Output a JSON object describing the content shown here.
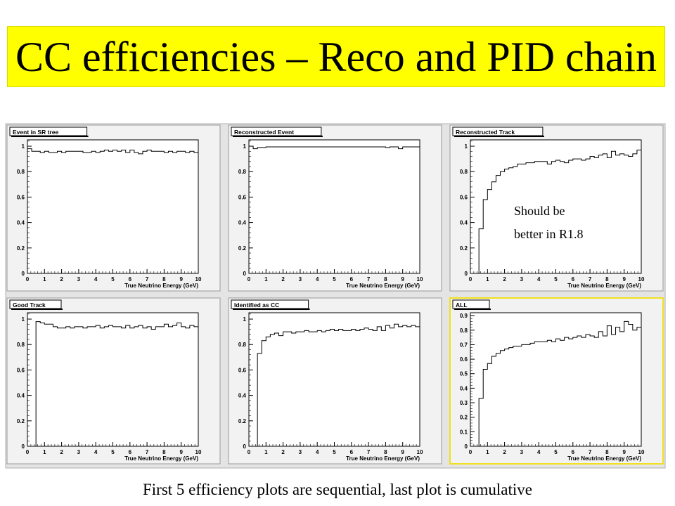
{
  "title": "CC efficiencies – Reco and PID chain",
  "caption": "First 5 efficiency plots are sequential, last plot is cumulative",
  "annotation": {
    "line1": "Should be",
    "line2": "better in R1.8"
  },
  "colors": {
    "title_bg": "#ffff00",
    "highlight_border": "#f0e020"
  },
  "chart_data": [
    {
      "type": "line",
      "title": "Event in SR tree",
      "xlabel": "True Neutrino Energy (GeV)",
      "xlim": [
        0,
        10
      ],
      "ylim": [
        0,
        1.05
      ],
      "xticks": [
        0,
        1,
        2,
        3,
        4,
        5,
        6,
        7,
        8,
        9,
        10
      ],
      "yticks": [
        0,
        0.2,
        0.4,
        0.6,
        0.8,
        1
      ],
      "ytick_labels": [
        "0",
        "0.2",
        "0.4",
        "0.6",
        "0.8",
        "1"
      ],
      "bin_width": 0.25,
      "values": [
        0.98,
        0.96,
        0.96,
        0.95,
        0.96,
        0.95,
        0.95,
        0.96,
        0.95,
        0.96,
        0.96,
        0.96,
        0.96,
        0.95,
        0.95,
        0.96,
        0.95,
        0.96,
        0.97,
        0.96,
        0.97,
        0.96,
        0.97,
        0.95,
        0.97,
        0.95,
        0.94,
        0.96,
        0.97,
        0.96,
        0.96,
        0.96,
        0.95,
        0.96,
        0.95,
        0.96,
        0.96,
        0.95,
        0.96,
        0.95
      ]
    },
    {
      "type": "line",
      "title": "Reconstructed Event",
      "xlabel": "True Neutrino Energy (GeV)",
      "xlim": [
        0,
        10
      ],
      "ylim": [
        0,
        1.05
      ],
      "xticks": [
        0,
        1,
        2,
        3,
        4,
        5,
        6,
        7,
        8,
        9,
        10
      ],
      "yticks": [
        0,
        0.2,
        0.4,
        0.6,
        0.8,
        1
      ],
      "ytick_labels": [
        "0",
        "0.2",
        "0.4",
        "0.6",
        "0.8",
        "1"
      ],
      "bin_width": 0.25,
      "values": [
        1.0,
        0.98,
        0.99,
        0.99,
        0.995,
        0.995,
        0.995,
        0.995,
        0.995,
        0.995,
        0.995,
        0.995,
        0.995,
        0.995,
        0.995,
        0.995,
        0.995,
        0.995,
        0.995,
        0.995,
        0.995,
        0.995,
        0.995,
        0.995,
        0.995,
        0.995,
        0.995,
        0.995,
        0.995,
        0.995,
        0.995,
        0.995,
        0.99,
        0.995,
        0.995,
        0.98,
        0.995,
        0.995,
        0.995,
        0.995
      ]
    },
    {
      "type": "line",
      "title": "Reconstructed Track",
      "xlabel": "True Neutrino Energy (GeV)",
      "xlim": [
        0,
        10
      ],
      "ylim": [
        0,
        1.05
      ],
      "xticks": [
        0,
        1,
        2,
        3,
        4,
        5,
        6,
        7,
        8,
        9,
        10
      ],
      "yticks": [
        0,
        0.2,
        0.4,
        0.6,
        0.8,
        1
      ],
      "ytick_labels": [
        "0",
        "0.2",
        "0.4",
        "0.6",
        "0.8",
        "1"
      ],
      "bin_width": 0.25,
      "values": [
        0,
        0,
        0.35,
        0.58,
        0.66,
        0.72,
        0.77,
        0.8,
        0.82,
        0.83,
        0.84,
        0.86,
        0.86,
        0.87,
        0.87,
        0.88,
        0.88,
        0.88,
        0.86,
        0.88,
        0.89,
        0.88,
        0.87,
        0.89,
        0.9,
        0.9,
        0.89,
        0.9,
        0.92,
        0.91,
        0.93,
        0.94,
        0.91,
        0.96,
        0.93,
        0.94,
        0.93,
        0.92,
        0.94,
        0.97
      ]
    },
    {
      "type": "line",
      "title": "Good Track",
      "xlabel": "True Neutrino Energy (GeV)",
      "xlim": [
        0,
        10
      ],
      "ylim": [
        0,
        1.05
      ],
      "xticks": [
        0,
        1,
        2,
        3,
        4,
        5,
        6,
        7,
        8,
        9,
        10
      ],
      "yticks": [
        0,
        0.2,
        0.4,
        0.6,
        0.8,
        1
      ],
      "ytick_labels": [
        "0",
        "0.2",
        "0.4",
        "0.6",
        "0.8",
        "1"
      ],
      "bin_width": 0.25,
      "values": [
        0,
        0,
        0.98,
        0.97,
        0.96,
        0.96,
        0.94,
        0.93,
        0.93,
        0.94,
        0.93,
        0.94,
        0.94,
        0.93,
        0.94,
        0.94,
        0.95,
        0.93,
        0.94,
        0.95,
        0.94,
        0.94,
        0.93,
        0.95,
        0.93,
        0.94,
        0.95,
        0.93,
        0.94,
        0.92,
        0.94,
        0.94,
        0.96,
        0.94,
        0.95,
        0.97,
        0.94,
        0.93,
        0.95,
        0.94
      ]
    },
    {
      "type": "line",
      "title": "Identified as CC",
      "xlabel": "True Neutrino Energy (GeV)",
      "xlim": [
        0,
        10
      ],
      "ylim": [
        0,
        1.05
      ],
      "xticks": [
        0,
        1,
        2,
        3,
        4,
        5,
        6,
        7,
        8,
        9,
        10
      ],
      "yticks": [
        0,
        0.2,
        0.4,
        0.6,
        0.8,
        1
      ],
      "ytick_labels": [
        "0",
        "0.2",
        "0.4",
        "0.6",
        "0.8",
        "1"
      ],
      "bin_width": 0.25,
      "values": [
        0,
        0,
        0.73,
        0.83,
        0.86,
        0.88,
        0.89,
        0.87,
        0.9,
        0.9,
        0.89,
        0.9,
        0.9,
        0.91,
        0.9,
        0.9,
        0.91,
        0.9,
        0.91,
        0.92,
        0.91,
        0.92,
        0.91,
        0.91,
        0.92,
        0.91,
        0.92,
        0.93,
        0.92,
        0.91,
        0.94,
        0.91,
        0.95,
        0.93,
        0.96,
        0.94,
        0.95,
        0.94,
        0.95,
        0.94
      ]
    },
    {
      "type": "line",
      "title": "ALL",
      "xlabel": "True Neutrino Energy (GeV)",
      "xlim": [
        0,
        10
      ],
      "ylim": [
        0,
        0.92
      ],
      "xticks": [
        0,
        1,
        2,
        3,
        4,
        5,
        6,
        7,
        8,
        9,
        10
      ],
      "yticks": [
        0,
        0.1,
        0.2,
        0.3,
        0.4,
        0.5,
        0.6,
        0.7,
        0.8,
        0.9
      ],
      "ytick_labels": [
        "0",
        "0.1",
        "0.2",
        "0.3",
        "0.4",
        "0.5",
        "0.6",
        "0.7",
        "0.8",
        "0.9"
      ],
      "bin_width": 0.25,
      "values": [
        0,
        0,
        0.33,
        0.53,
        0.57,
        0.62,
        0.64,
        0.66,
        0.67,
        0.68,
        0.69,
        0.69,
        0.7,
        0.7,
        0.71,
        0.72,
        0.72,
        0.72,
        0.73,
        0.72,
        0.74,
        0.73,
        0.75,
        0.74,
        0.75,
        0.76,
        0.75,
        0.77,
        0.76,
        0.75,
        0.79,
        0.76,
        0.83,
        0.77,
        0.82,
        0.79,
        0.86,
        0.84,
        0.8,
        0.82
      ]
    }
  ]
}
